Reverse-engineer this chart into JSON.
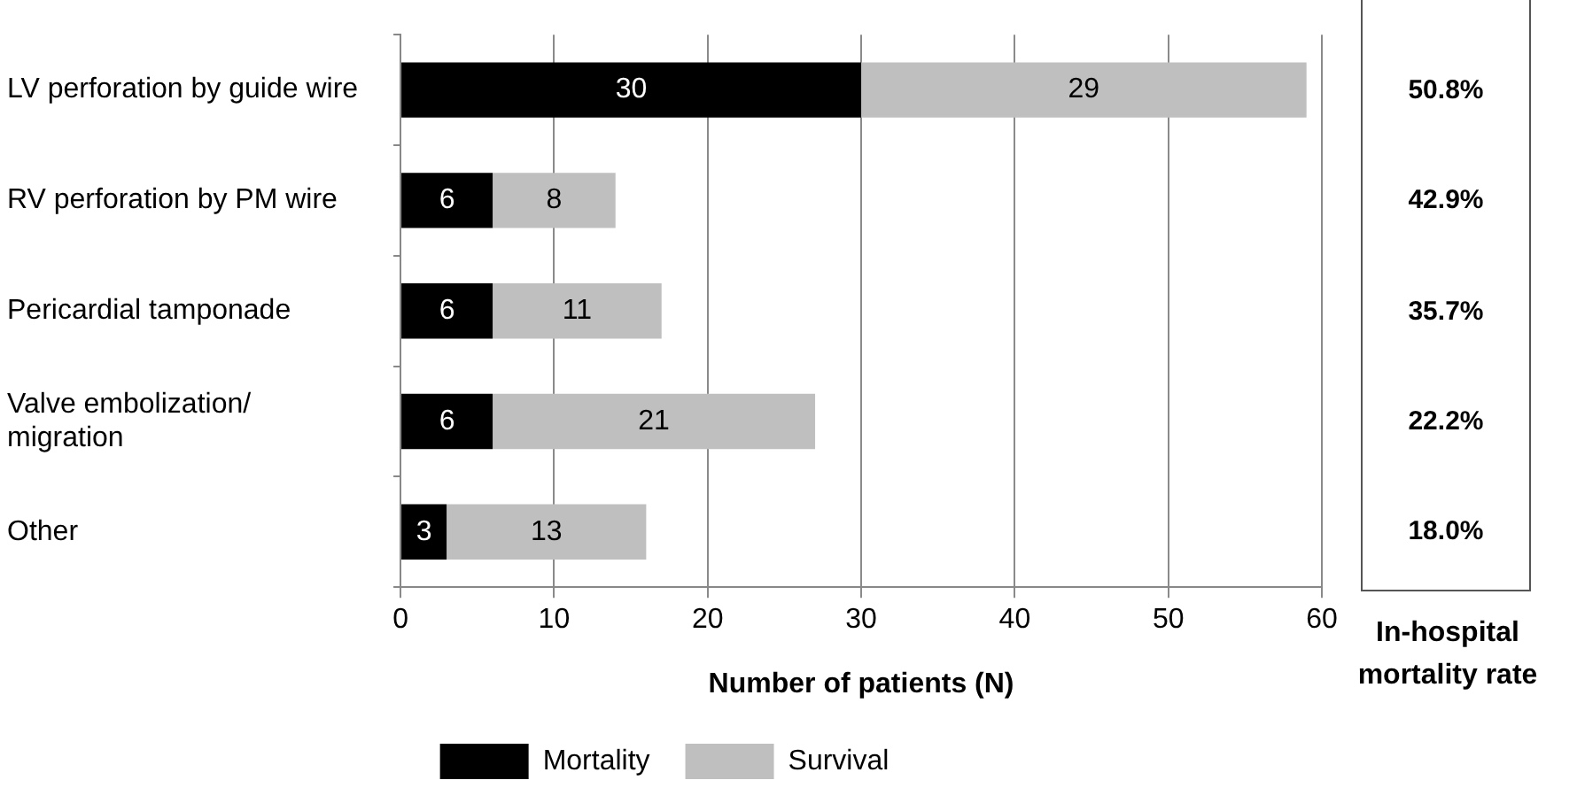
{
  "chart_data": [
    {
      "type": "bar",
      "orientation": "horizontal",
      "stacked": true,
      "categories": [
        "LV perforation by guide wire",
        "RV perforation by PM wire",
        "Pericardial tamponade",
        "Valve embolization/ migration",
        "Other"
      ],
      "series": [
        {
          "name": "Mortality",
          "color": "#000000",
          "values": [
            30,
            6,
            6,
            6,
            3
          ]
        },
        {
          "name": "Survival",
          "color": "#bfbfbf",
          "values": [
            29,
            8,
            11,
            21,
            13
          ]
        }
      ],
      "xlim": [
        0,
        60
      ],
      "xticks": [
        0,
        10,
        20,
        30,
        40,
        50,
        60
      ],
      "xlabel": "Number of patients (N)",
      "grid": "x",
      "legend": "bottom",
      "data_labels": true
    },
    {
      "type": "other",
      "xlabel": "In-hospital mortality rate",
      "annotations": [
        "50.8%",
        "42.9%",
        "35.7%",
        "22.2%",
        "18.0%"
      ]
    }
  ]
}
